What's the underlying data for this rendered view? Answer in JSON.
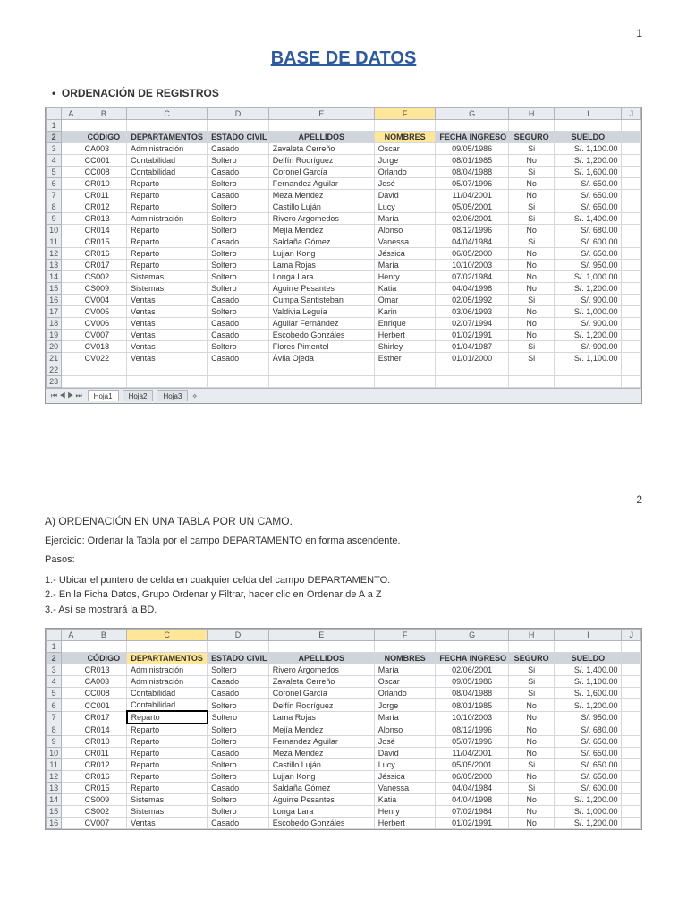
{
  "pageNumbers": {
    "p1": "1",
    "p2": "2"
  },
  "title": "BASE DE DATOS",
  "sectionHeading": "ORDENACIÓN DE REGISTROS",
  "columns": [
    "A",
    "B",
    "C",
    "D",
    "E",
    "F",
    "G",
    "H",
    "I",
    "J"
  ],
  "fieldHeaders": [
    "",
    "CÓDIGO",
    "DEPARTAMENTOS",
    "ESTADO CIVIL",
    "APELLIDOS",
    "NOMBRES",
    "FECHA INGRESO",
    "SEGURO",
    "SUELDO",
    ""
  ],
  "table1": {
    "selectedColIndex": 5,
    "rows": [
      [
        "CA003",
        "Administración",
        "Casado",
        "Zavaleta Cerreño",
        "Oscar",
        "09/05/1986",
        "Si",
        "S/. 1,100.00"
      ],
      [
        "CC001",
        "Contabilidad",
        "Soltero",
        "Delfín Rodríguez",
        "Jorge",
        "08/01/1985",
        "No",
        "S/. 1,200.00"
      ],
      [
        "CC008",
        "Contabilidad",
        "Casado",
        "Coronel García",
        "Orlando",
        "08/04/1988",
        "Si",
        "S/. 1,600.00"
      ],
      [
        "CR010",
        "Reparto",
        "Soltero",
        "Fernandez Aguilar",
        "José",
        "05/07/1996",
        "No",
        "S/. 650.00"
      ],
      [
        "CR011",
        "Reparto",
        "Casado",
        "Meza Mendez",
        "David",
        "11/04/2001",
        "No",
        "S/. 650.00"
      ],
      [
        "CR012",
        "Reparto",
        "Soltero",
        "Castillo Luján",
        "Lucy",
        "05/05/2001",
        "Si",
        "S/. 650.00"
      ],
      [
        "CR013",
        "Administración",
        "Soltero",
        "Rivero Argomedos",
        "María",
        "02/06/2001",
        "Si",
        "S/. 1,400.00"
      ],
      [
        "CR014",
        "Reparto",
        "Soltero",
        "Mejía Mendez",
        "Alonso",
        "08/12/1996",
        "No",
        "S/. 680.00"
      ],
      [
        "CR015",
        "Reparto",
        "Casado",
        "Saldaña Gómez",
        "Vanessa",
        "04/04/1984",
        "Si",
        "S/. 600.00"
      ],
      [
        "CR016",
        "Reparto",
        "Soltero",
        "Lujjan Kong",
        "Jéssica",
        "06/05/2000",
        "No",
        "S/. 650.00"
      ],
      [
        "CR017",
        "Reparto",
        "Soltero",
        "Lama Rojas",
        "María",
        "10/10/2003",
        "No",
        "S/. 950.00"
      ],
      [
        "CS002",
        "Sistemas",
        "Soltero",
        "Longa Lara",
        "Henry",
        "07/02/1984",
        "No",
        "S/. 1,000.00"
      ],
      [
        "CS009",
        "Sistemas",
        "Soltero",
        "Aguirre Pesantes",
        "Katia",
        "04/04/1998",
        "No",
        "S/. 1,200.00"
      ],
      [
        "CV004",
        "Ventas",
        "Casado",
        "Cumpa Santisteban",
        "Omar",
        "02/05/1992",
        "Si",
        "S/. 900.00"
      ],
      [
        "CV005",
        "Ventas",
        "Soltero",
        "Valdivia Leguía",
        "Karin",
        "03/06/1993",
        "No",
        "S/. 1,000.00"
      ],
      [
        "CV006",
        "Ventas",
        "Casado",
        "Aguilar Fernández",
        "Enrique",
        "02/07/1994",
        "No",
        "S/. 900.00"
      ],
      [
        "CV007",
        "Ventas",
        "Casado",
        "Escobedo Gonzáles",
        "Herbert",
        "01/02/1991",
        "No",
        "S/. 1,200.00"
      ],
      [
        "CV018",
        "Ventas",
        "Soltero",
        "Flores Pimentel",
        "Shirley",
        "01/04/1987",
        "Si",
        "S/. 900.00"
      ],
      [
        "CV022",
        "Ventas",
        "Casado",
        "Ávila Ojeda",
        "Esther",
        "01/01/2000",
        "Si",
        "S/. 1,100.00"
      ]
    ],
    "emptyRows": 2
  },
  "tabs": {
    "active": "Hoja1",
    "others": [
      "Hoja2",
      "Hoja3"
    ]
  },
  "section2": {
    "heading": "A)   ORDENACIÓN EN UNA TABLA POR UN CAMO.",
    "exercise": "Ejercicio: Ordenar la Tabla por el campo DEPARTAMENTO en forma ascendente.",
    "stepsLabel": "Pasos:",
    "steps": [
      "1.- Ubicar el puntero de celda en cualquier celda del campo DEPARTAMENTO.",
      "2.- En la Ficha Datos, Grupo Ordenar y Filtrar, hacer clic en Ordenar de A a Z",
      "3.- Así se mostrará la BD."
    ]
  },
  "table2": {
    "selectedColIndex": 2,
    "selectedCell": {
      "row": 7,
      "col": 2
    },
    "rows": [
      [
        "CR013",
        "Administración",
        "Soltero",
        "Rivero Argomedos",
        "María",
        "02/06/2001",
        "Si",
        "S/. 1,400.00"
      ],
      [
        "CA003",
        "Administración",
        "Casado",
        "Zavaleta Cerreño",
        "Oscar",
        "09/05/1986",
        "Si",
        "S/. 1,100.00"
      ],
      [
        "CC008",
        "Contabilidad",
        "Casado",
        "Coronel García",
        "Orlando",
        "08/04/1988",
        "Si",
        "S/. 1,600.00"
      ],
      [
        "CC001",
        "Contabilidad",
        "Soltero",
        "Delfín Rodríguez",
        "Jorge",
        "08/01/1985",
        "No",
        "S/. 1,200.00"
      ],
      [
        "CR017",
        "Reparto",
        "Soltero",
        "Lama Rojas",
        "María",
        "10/10/2003",
        "No",
        "S/. 950.00"
      ],
      [
        "CR014",
        "Reparto",
        "Soltero",
        "Mejía Mendez",
        "Alonso",
        "08/12/1996",
        "No",
        "S/. 680.00"
      ],
      [
        "CR010",
        "Reparto",
        "Soltero",
        "Fernandez Aguilar",
        "José",
        "05/07/1996",
        "No",
        "S/. 650.00"
      ],
      [
        "CR011",
        "Reparto",
        "Casado",
        "Meza Mendez",
        "David",
        "11/04/2001",
        "No",
        "S/. 650.00"
      ],
      [
        "CR012",
        "Reparto",
        "Soltero",
        "Castillo Luján",
        "Lucy",
        "05/05/2001",
        "Si",
        "S/. 650.00"
      ],
      [
        "CR016",
        "Reparto",
        "Soltero",
        "Lujjan Kong",
        "Jéssica",
        "06/05/2000",
        "No",
        "S/. 650.00"
      ],
      [
        "CR015",
        "Reparto",
        "Casado",
        "Saldaña Gómez",
        "Vanessa",
        "04/04/1984",
        "Si",
        "S/. 600.00"
      ],
      [
        "CS009",
        "Sistemas",
        "Soltero",
        "Aguirre Pesantes",
        "Katia",
        "04/04/1998",
        "No",
        "S/. 1,200.00"
      ],
      [
        "CS002",
        "Sistemas",
        "Soltero",
        "Longa Lara",
        "Henry",
        "07/02/1984",
        "No",
        "S/. 1,000.00"
      ],
      [
        "CV007",
        "Ventas",
        "Casado",
        "Escobedo Gonzáles",
        "Herbert",
        "01/02/1991",
        "No",
        "S/. 1,200.00"
      ]
    ]
  },
  "colWidths": [
    "16px",
    "20px",
    "48px",
    "84px",
    "64px",
    "110px",
    "64px",
    "76px",
    "48px",
    "70px",
    "20px"
  ],
  "colors": {
    "headerBg": "#e8ecf0",
    "fieldBg": "#cfd5db",
    "selCol": "#ffe699",
    "border": "#b0b6bc",
    "titleColor": "#2e5a9c"
  }
}
